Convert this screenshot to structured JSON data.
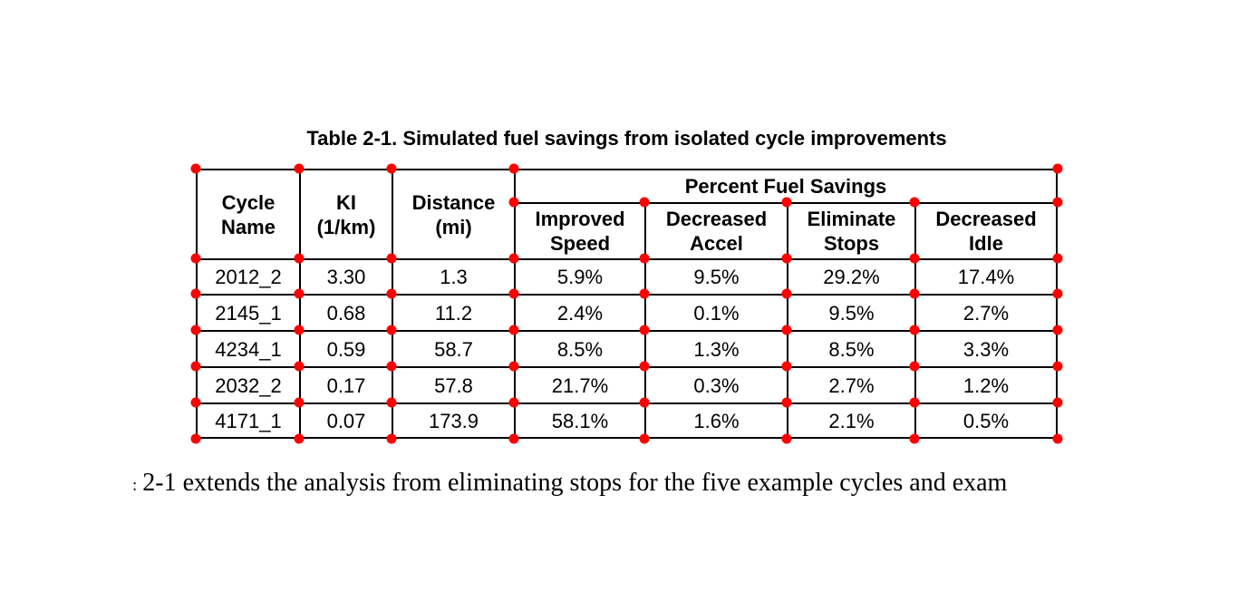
{
  "title": "Table 2-1. Simulated fuel savings from isolated cycle improvements",
  "table": {
    "marker_color": "#ff0000",
    "row_headers": [
      {
        "label": "Cycle\nName"
      },
      {
        "label": "KI\n(1/km)"
      },
      {
        "label": "Distance\n(mi)"
      }
    ],
    "group_header": "Percent Fuel Savings",
    "sub_headers": [
      "Improved\nSpeed",
      "Decreased\nAccel",
      "Eliminate\nStops",
      "Decreased\nIdle"
    ],
    "rows": [
      [
        "2012_2",
        "3.30",
        "1.3",
        "5.9%",
        "9.5%",
        "29.2%",
        "17.4%"
      ],
      [
        "2145_1",
        "0.68",
        "11.2",
        "2.4%",
        "0.1%",
        "9.5%",
        "2.7%"
      ],
      [
        "4234_1",
        "0.59",
        "58.7",
        "8.5%",
        "1.3%",
        "8.5%",
        "3.3%"
      ],
      [
        "2032_2",
        "0.17",
        "57.8",
        "21.7%",
        "0.3%",
        "2.7%",
        "1.2%"
      ],
      [
        "4171_1",
        "0.07",
        "173.9",
        "58.1%",
        "1.6%",
        "2.1%",
        "0.5%"
      ]
    ]
  },
  "body_text": {
    "leading_fragment": ":",
    "text": "2-1 extends the analysis from eliminating stops for the five example cycles and exam"
  }
}
